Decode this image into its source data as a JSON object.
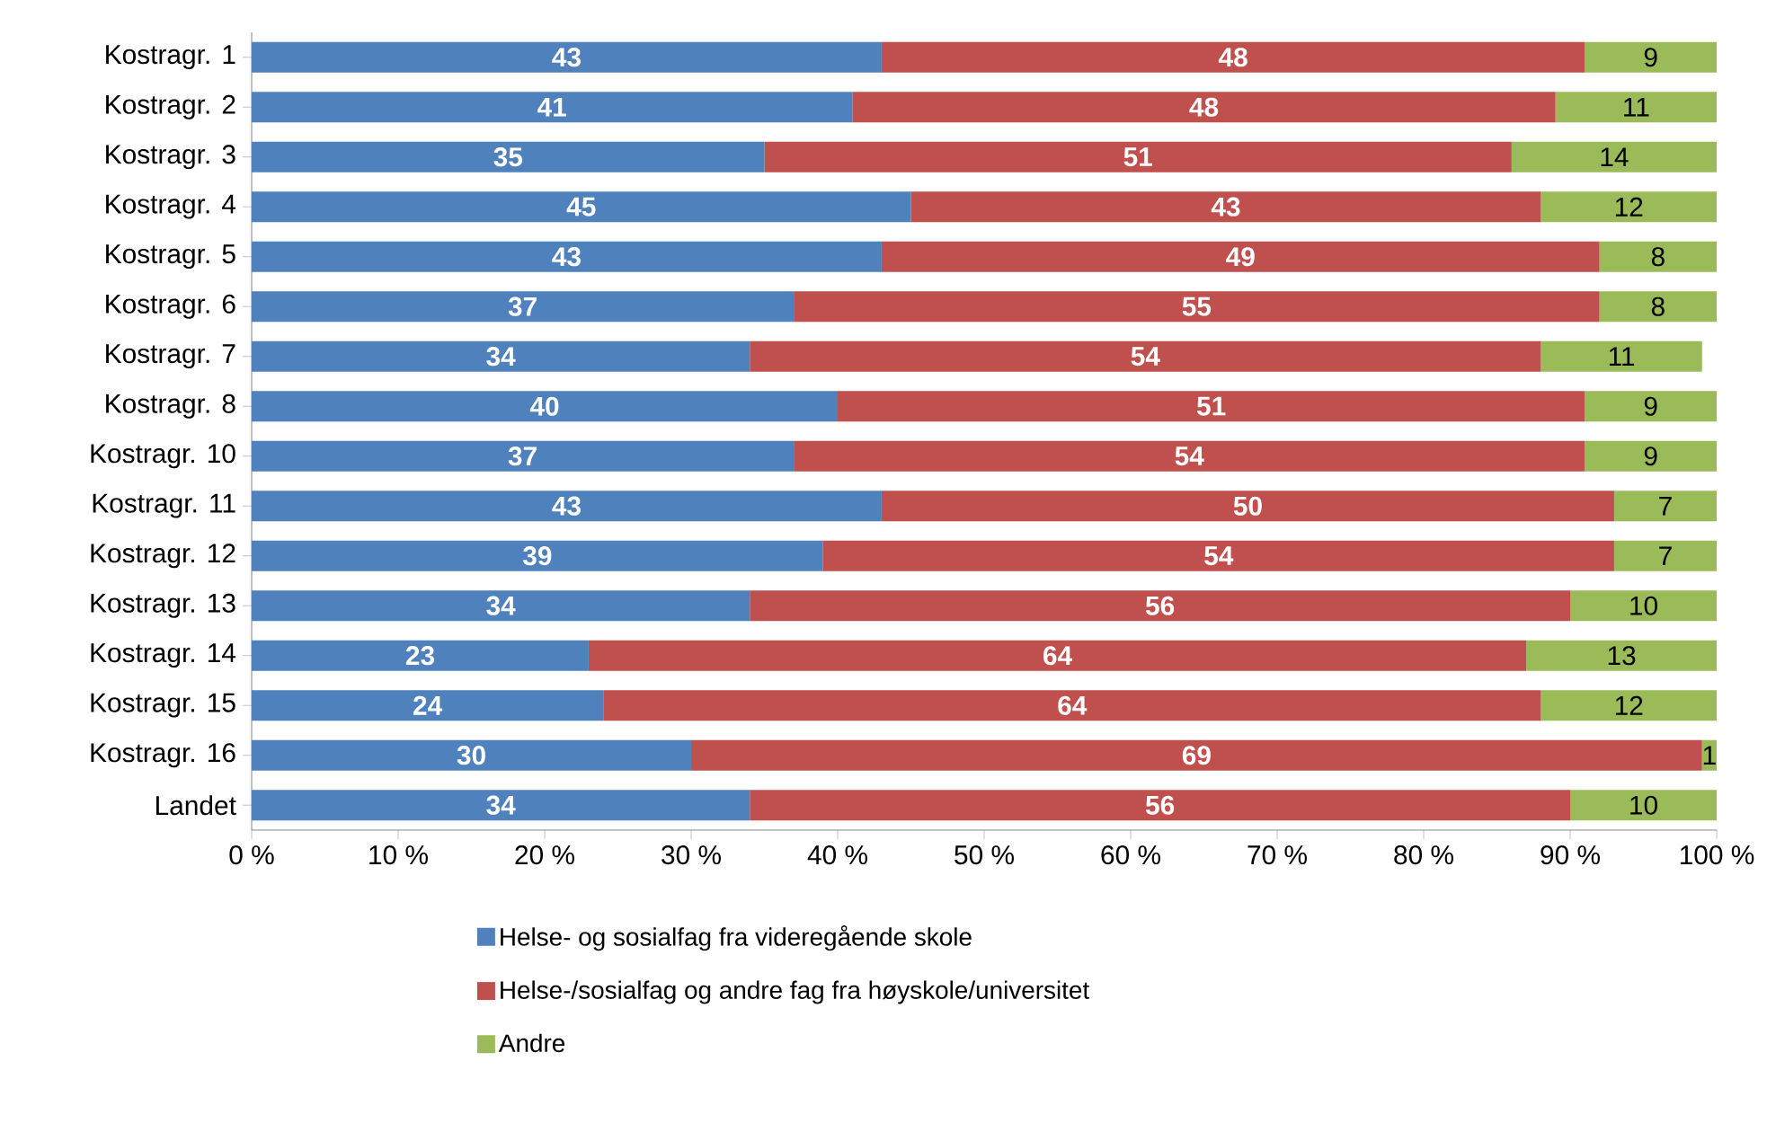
{
  "chart_data": {
    "type": "bar",
    "orientation": "horizontal",
    "stacked": true,
    "data_labels": true,
    "legend": "bottom",
    "grid": false,
    "categories": [
      "Kostragr. 1",
      "Kostragr. 2",
      "Kostragr. 3",
      "Kostragr. 4",
      "Kostragr. 5",
      "Kostragr. 6",
      "Kostragr. 7",
      "Kostragr. 8",
      "Kostragr. 10",
      "Kostragr. 11",
      "Kostragr. 12",
      "Kostragr. 13",
      "Kostragr. 14",
      "Kostragr. 15",
      "Kostragr. 16",
      "Landet"
    ],
    "series": [
      {
        "name": "Helse- og sosialfag fra videregående skole",
        "color": "#4f81bd",
        "values": [
          43,
          41,
          35,
          45,
          43,
          37,
          34,
          40,
          37,
          43,
          39,
          34,
          23,
          24,
          30,
          34
        ]
      },
      {
        "name": "Helse-/sosialfag og andre fag fra høyskole/universitet",
        "color": "#c0504d",
        "values": [
          48,
          48,
          51,
          43,
          49,
          55,
          54,
          51,
          54,
          50,
          54,
          56,
          64,
          64,
          69,
          56
        ]
      },
      {
        "name": "Andre",
        "color": "#9bbb59",
        "values": [
          9,
          11,
          14,
          12,
          8,
          8,
          11,
          9,
          9,
          7,
          7,
          10,
          13,
          12,
          1,
          10
        ]
      }
    ],
    "xlim": [
      0,
      100
    ],
    "xticks": [
      {
        "value": 0,
        "label": "0 %"
      },
      {
        "value": 10,
        "label": "10 %"
      },
      {
        "value": 20,
        "label": "20 %"
      },
      {
        "value": 30,
        "label": "30 %"
      },
      {
        "value": 40,
        "label": "40 %"
      },
      {
        "value": 50,
        "label": "50 %"
      },
      {
        "value": 60,
        "label": "60 %"
      },
      {
        "value": 70,
        "label": "70 %"
      },
      {
        "value": 80,
        "label": "80 %"
      },
      {
        "value": 90,
        "label": "90 %"
      },
      {
        "value": 100,
        "label": "100 %"
      }
    ]
  }
}
